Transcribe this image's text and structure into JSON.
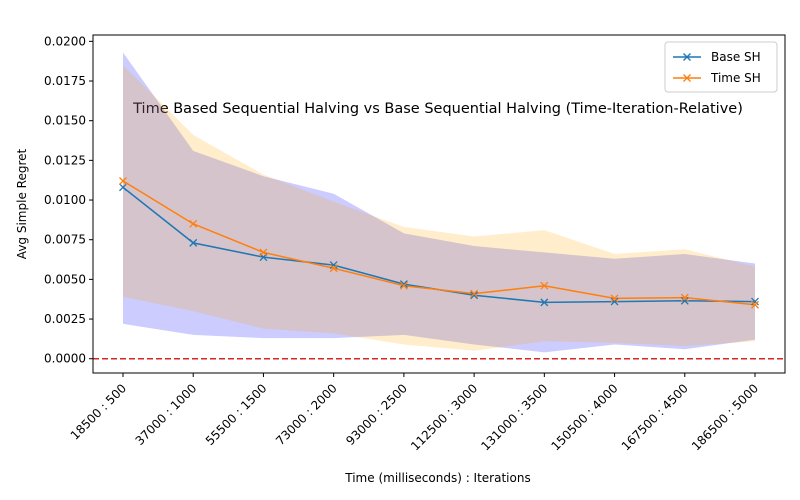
{
  "chart_data": {
    "type": "line",
    "title": "Time Based Sequential Halving vs Base Sequential Halving (Time-Iteration-Relative)",
    "xlabel": "Time (milliseconds) : Iterations",
    "ylabel": "Avg Simple Regret",
    "categories": [
      "18500 : 500",
      "37000 : 1000",
      "55500 : 1500",
      "73000 : 2000",
      "93000 : 2500",
      "112500 : 3000",
      "131000 : 3500",
      "150500 : 4000",
      "167500 : 4500",
      "186500 : 5000"
    ],
    "x": [
      18500,
      37000,
      55500,
      73000,
      93000,
      112500,
      131000,
      150500,
      167500,
      186500
    ],
    "ylim": [
      -0.0009,
      0.0204
    ],
    "yticks": [
      "0.0000",
      "0.0025",
      "0.0050",
      "0.0075",
      "0.0100",
      "0.0125",
      "0.0150",
      "0.0175",
      "0.0200"
    ],
    "ytick_values": [
      0,
      0.0025,
      0.005,
      0.0075,
      0.01,
      0.0125,
      0.015,
      0.0175,
      0.02
    ],
    "hline": {
      "y": 0,
      "color": "#d62728",
      "style": "dashed"
    },
    "legend_position": "top-right",
    "grid": false,
    "series": [
      {
        "name": "Base SH",
        "color": "#1f77b4",
        "band_color": "#0000ff",
        "marker": "x",
        "values": [
          0.0108,
          0.0073,
          0.0064,
          0.0059,
          0.0047,
          0.004,
          0.00355,
          0.0036,
          0.00365,
          0.0036
        ],
        "band_upper": [
          0.0193,
          0.0131,
          0.0115,
          0.0104,
          0.0079,
          0.0071,
          0.0067,
          0.0063,
          0.0066,
          0.006
        ],
        "band_lower": [
          0.0022,
          0.0015,
          0.0013,
          0.0013,
          0.0015,
          0.0009,
          0.0004,
          0.0009,
          0.0006,
          0.0012
        ]
      },
      {
        "name": "Time SH",
        "color": "#ff7f0e",
        "band_color": "#ffa500",
        "marker": "x",
        "values": [
          0.0112,
          0.0085,
          0.0067,
          0.0057,
          0.0046,
          0.0041,
          0.0046,
          0.0038,
          0.00385,
          0.0034
        ],
        "band_upper": [
          0.0185,
          0.0141,
          0.0116,
          0.0099,
          0.0083,
          0.0077,
          0.0081,
          0.0066,
          0.0069,
          0.0058
        ],
        "band_lower": [
          0.0039,
          0.003,
          0.0019,
          0.0016,
          0.0009,
          0.0005,
          0.0011,
          0.001,
          0.0008,
          0.0011
        ]
      }
    ]
  }
}
